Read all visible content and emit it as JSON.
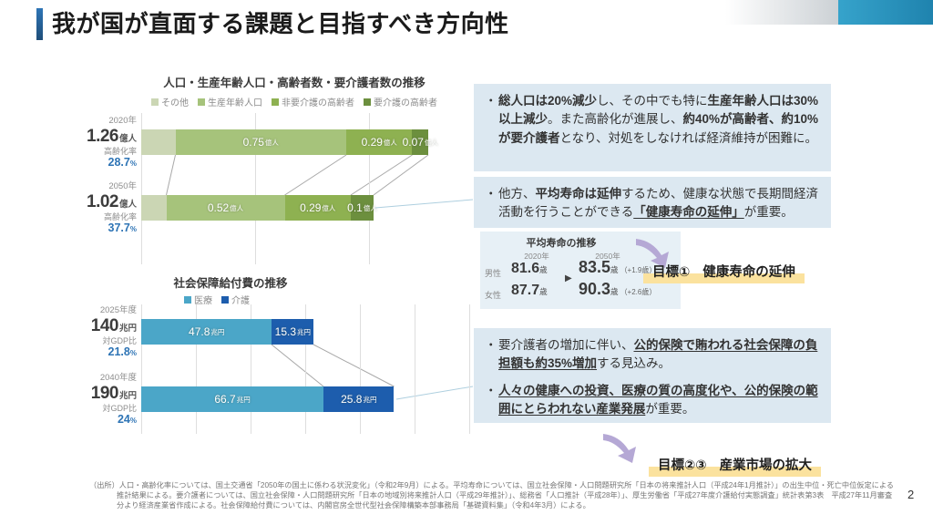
{
  "header": {
    "title": "我が国が直面する課題と目指すべき方向性",
    "page_number": "2"
  },
  "colors": {
    "accent_blue_bar": "#2e75b6",
    "deco_teal": "#2792bd",
    "callout_bg": "#dce8f1",
    "life_panel_bg": "#e7f0f6",
    "goal_highlight": "#fbe29e",
    "arrow_purple": "#b5a8d5",
    "percent_blue": "#2e74b5",
    "connector_gray": "#a8a8a8",
    "connector_teal": "#aecfdf"
  },
  "chart_data": [
    {
      "type": "bar",
      "orientation": "horizontal-stacked",
      "title": "人口・生産年齢人口・高齢者数・要介護者数の推移",
      "unit": "億人",
      "axis_max": 1.32,
      "grid_step": 0.5,
      "legend": [
        {
          "label": "その他",
          "color": "#cbd6b4"
        },
        {
          "label": "生産年齢人口",
          "color": "#a6c37b"
        },
        {
          "label": "非要介護の高齢者",
          "color": "#8eb151"
        },
        {
          "label": "要介護の高齢者",
          "color": "#6c8f3e"
        }
      ],
      "rows": [
        {
          "year": "2020年",
          "total_value": "1.26",
          "total_unit": "億人",
          "sub_label": "高齢化率",
          "sub_value": "28.7",
          "sub_unit": "%",
          "segments": [
            {
              "name": "その他",
              "value": 0.15,
              "label": "",
              "unit": "",
              "color_index": 0
            },
            {
              "name": "生産年齢人口",
              "value": 0.75,
              "label": "0.75",
              "unit": "億人",
              "color_index": 1
            },
            {
              "name": "非要介護の高齢者",
              "value": 0.29,
              "label": "0.29",
              "unit": "億人",
              "color_index": 2
            },
            {
              "name": "要介護の高齢者",
              "value": 0.07,
              "label": "0.07",
              "unit": "億人",
              "color_index": 3
            }
          ]
        },
        {
          "year": "2050年",
          "total_value": "1.02",
          "total_unit": "億人",
          "sub_label": "高齢化率",
          "sub_value": "37.7",
          "sub_unit": "%",
          "segments": [
            {
              "name": "その他",
              "value": 0.11,
              "label": "",
              "unit": "",
              "color_index": 0
            },
            {
              "name": "生産年齢人口",
              "value": 0.52,
              "label": "0.52",
              "unit": "億人",
              "color_index": 1
            },
            {
              "name": "非要介護の高齢者",
              "value": 0.29,
              "label": "0.29",
              "unit": "億人",
              "color_index": 2
            },
            {
              "name": "要介護の高齢者",
              "value": 0.1,
              "label": "0.1",
              "unit": "億人",
              "color_index": 3
            }
          ]
        }
      ]
    },
    {
      "type": "bar",
      "orientation": "horizontal-stacked",
      "title": "社会保障給付費の推移",
      "unit": "兆円",
      "axis_max": 120,
      "grid_step": 20,
      "legend": [
        {
          "label": "医療",
          "color": "#4ba6c8"
        },
        {
          "label": "介護",
          "color": "#1d5dad"
        }
      ],
      "rows": [
        {
          "year": "2025年度",
          "total_value": "140",
          "total_unit": "兆円",
          "sub_label": "対GDP比",
          "sub_value": "21.8",
          "sub_unit": "%",
          "segments": [
            {
              "name": "医療",
              "value": 47.8,
              "label": "47.8",
              "unit": "兆円",
              "color_index": 0
            },
            {
              "name": "介護",
              "value": 15.3,
              "label": "15.3",
              "unit": "兆円",
              "color_index": 1
            }
          ]
        },
        {
          "year": "2040年度",
          "total_value": "190",
          "total_unit": "兆円",
          "sub_label": "対GDP比",
          "sub_value": "24",
          "sub_unit": "%",
          "segments": [
            {
              "name": "医療",
              "value": 66.7,
              "label": "66.7",
              "unit": "兆円",
              "color_index": 0
            },
            {
              "name": "介護",
              "value": 25.8,
              "label": "25.8",
              "unit": "兆円",
              "color_index": 1
            }
          ]
        }
      ]
    }
  ],
  "callouts": {
    "box1": [
      {
        "t": "総人口は20%減少",
        "b": 1
      },
      {
        "t": "し、その中でも特に"
      },
      {
        "t": "生産年齢人口は30%以上減少",
        "b": 1
      },
      {
        "t": "。また高齢化が進展し、"
      },
      {
        "t": "約40%が高齢者、約10%が要介護者",
        "b": 1
      },
      {
        "t": "となり、対処をしなければ経済維持が困難に。"
      }
    ],
    "box2": [
      {
        "t": "他方、"
      },
      {
        "t": "平均寿命は延伸",
        "b": 1
      },
      {
        "t": "するため、健康な状態で長期間経済活動を行うことができる"
      },
      {
        "t": "「健康寿命の延伸」",
        "b": 1,
        "u": 1
      },
      {
        "t": "が重要。"
      }
    ],
    "box3_b1": [
      {
        "t": "要介護者の増加に伴い、"
      },
      {
        "t": "公的保険で賄われる社会保障の負担額も約35%増加",
        "b": 1,
        "u": 1
      },
      {
        "t": "する見込み。"
      }
    ],
    "box3_b2": [
      {
        "t": "人々の健康への投資、医療の質の高度化や、公的保険の範囲にとらわれない産業発展",
        "b": 1,
        "u": 1
      },
      {
        "t": "が重要。"
      }
    ]
  },
  "life_table": {
    "title": "平均寿命の推移",
    "col_2020": "2020年",
    "col_2050": "2050年",
    "arrow": "▶",
    "unit": "歳",
    "rows": [
      {
        "label": "男性",
        "v2020": "81.6",
        "v2050": "83.5",
        "diff": "（+1.9歳）"
      },
      {
        "label": "女性",
        "v2020": "87.7",
        "v2050": "90.3",
        "diff": "（+2.6歳）"
      }
    ]
  },
  "goals": [
    {
      "label": "目標①",
      "text": "健康寿命の延伸"
    },
    {
      "label": "目標②③",
      "text": "産業市場の拡大"
    }
  ],
  "footnote": "（出所）人口・高齢化率については、国土交通省「2050年の国土に係わる状況変化」（令和2年9月）による。平均寿命については、国立社会保障・人口問題研究所「日本の将来推計人口（平成24年1月推計）」の出生中位・死亡中位仮定による推計結果による。要介護者については、国立社会保障・人口問題研究所「日本の地域別将来推計人口（平成29年推計）」、総務省「人口推計（平成28年）」、厚生労働省「平成27年度介護給付実態調査」統計表第3表　平成27年11月審査分より経済産業省作成による。社会保障給付費については、内閣官房全世代型社会保障構築本部事務局「基礎資料集」（令和4年3月）による。"
}
